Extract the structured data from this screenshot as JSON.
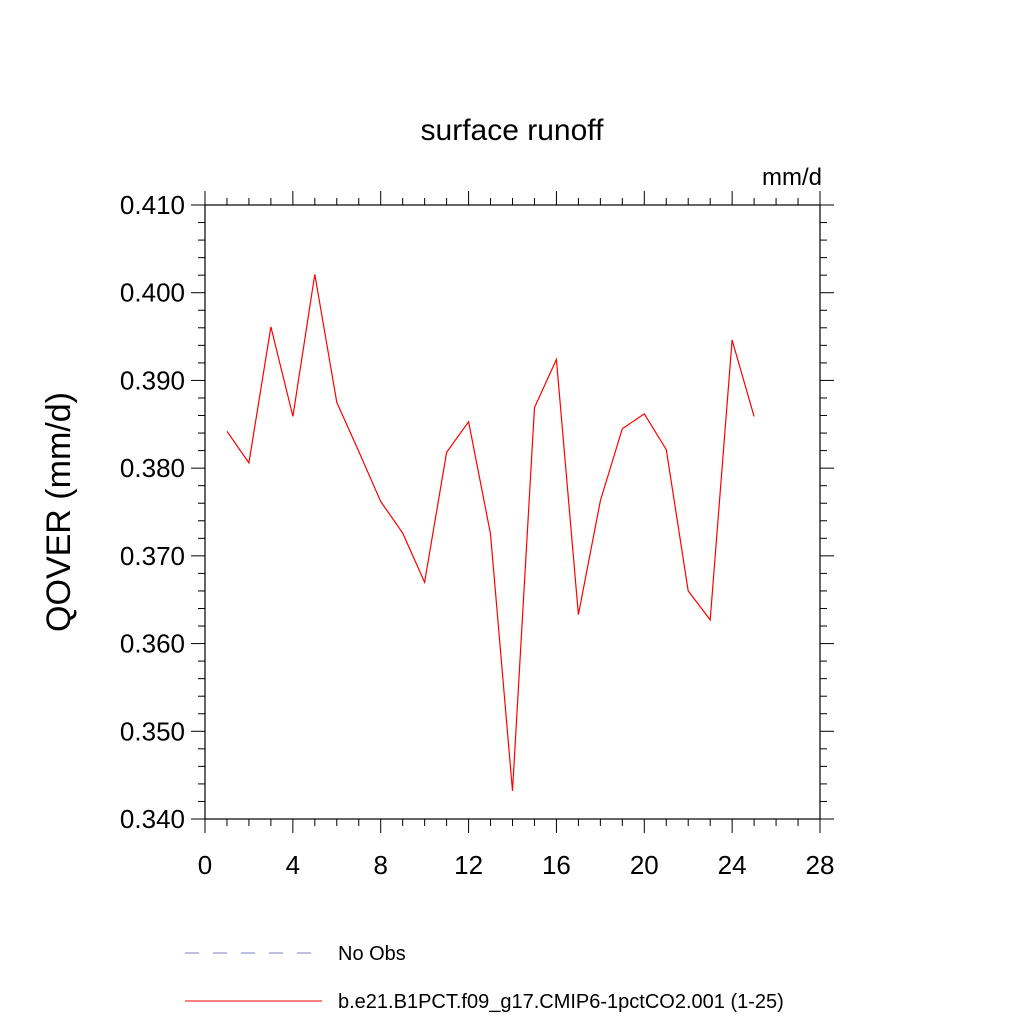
{
  "chart_data": {
    "type": "line",
    "title": "surface runoff",
    "units": "mm/d",
    "xlabel": "",
    "ylabel": "QOVER  (mm/d)",
    "xlim": [
      0,
      28
    ],
    "ylim": [
      0.34,
      0.41
    ],
    "x_major_ticks": [
      0,
      4,
      8,
      12,
      16,
      20,
      24,
      28
    ],
    "x_tick_labels": [
      "0",
      "4",
      "8",
      "12",
      "16",
      "20",
      "24",
      "28"
    ],
    "y_major_ticks": [
      0.34,
      0.35,
      0.36,
      0.37,
      0.38,
      0.39,
      0.4,
      0.41
    ],
    "y_tick_labels": [
      "0.340",
      "0.350",
      "0.360",
      "0.370",
      "0.380",
      "0.390",
      "0.400",
      "0.410"
    ],
    "grid": false,
    "legend_position": "bottom",
    "series": [
      {
        "name": "b.e21.B1PCT.f09_g17.CMIP6-1pctCO2.001 (1-25)",
        "color": "#ff0000",
        "style": "solid",
        "x": [
          1,
          2,
          3,
          4,
          5,
          6,
          7,
          8,
          9,
          10,
          11,
          12,
          13,
          14,
          15,
          16,
          17,
          18,
          19,
          20,
          21,
          22,
          23,
          24,
          25
        ],
        "values": [
          0.3842,
          0.3806,
          0.3961,
          0.3859,
          0.4021,
          0.3875,
          0.3819,
          0.3762,
          0.3726,
          0.367,
          0.3818,
          0.3853,
          0.3725,
          0.3432,
          0.3869,
          0.3924,
          0.3633,
          0.3763,
          0.3845,
          0.3862,
          0.3821,
          0.366,
          0.3627,
          0.3946,
          0.3859
        ]
      }
    ],
    "legend": [
      {
        "label": "No Obs",
        "color": "#8080c0",
        "style": "dashed"
      },
      {
        "label": "b.e21.B1PCT.f09_g17.CMIP6-1pctCO2.001 (1-25)",
        "color": "#ff0000",
        "style": "solid"
      }
    ]
  }
}
